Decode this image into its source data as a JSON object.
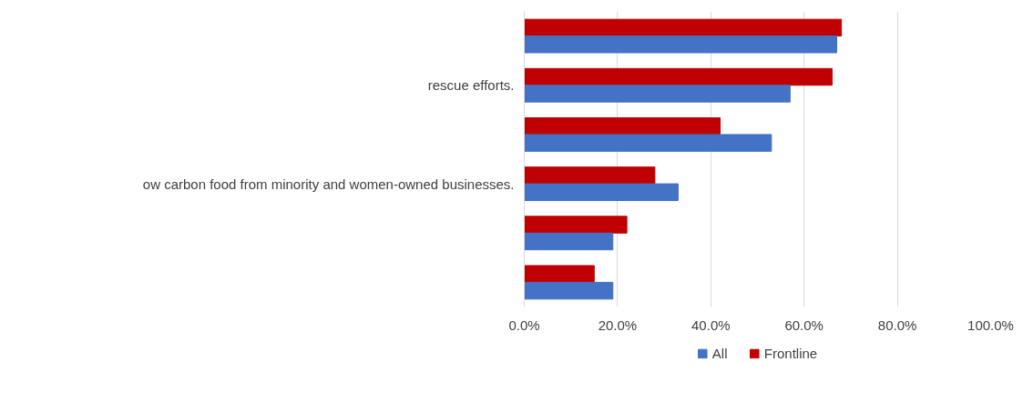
{
  "chart_data": {
    "type": "bar",
    "orientation": "horizontal",
    "categories": [
      null,
      "rescue efforts.",
      null,
      "ow carbon food from minority and women-owned businesses.",
      null,
      null
    ],
    "series": [
      {
        "name": "Frontline",
        "color": "#c00000",
        "values": [
          68,
          66,
          42,
          28,
          22,
          15
        ]
      },
      {
        "name": "All",
        "color": "#4472c4",
        "values": [
          67,
          57,
          53,
          33,
          19,
          19
        ]
      }
    ],
    "xlim": [
      0,
      100
    ],
    "xticks": [
      {
        "value": 0,
        "label": "0.0%"
      },
      {
        "value": 20,
        "label": "20.0%"
      },
      {
        "value": 40,
        "label": "40.0%"
      },
      {
        "value": 60,
        "label": "60.0%"
      },
      {
        "value": 80,
        "label": "80.0%"
      },
      {
        "value": 100,
        "label": "100.0%"
      }
    ],
    "grid": "x",
    "legend": "bottom"
  }
}
